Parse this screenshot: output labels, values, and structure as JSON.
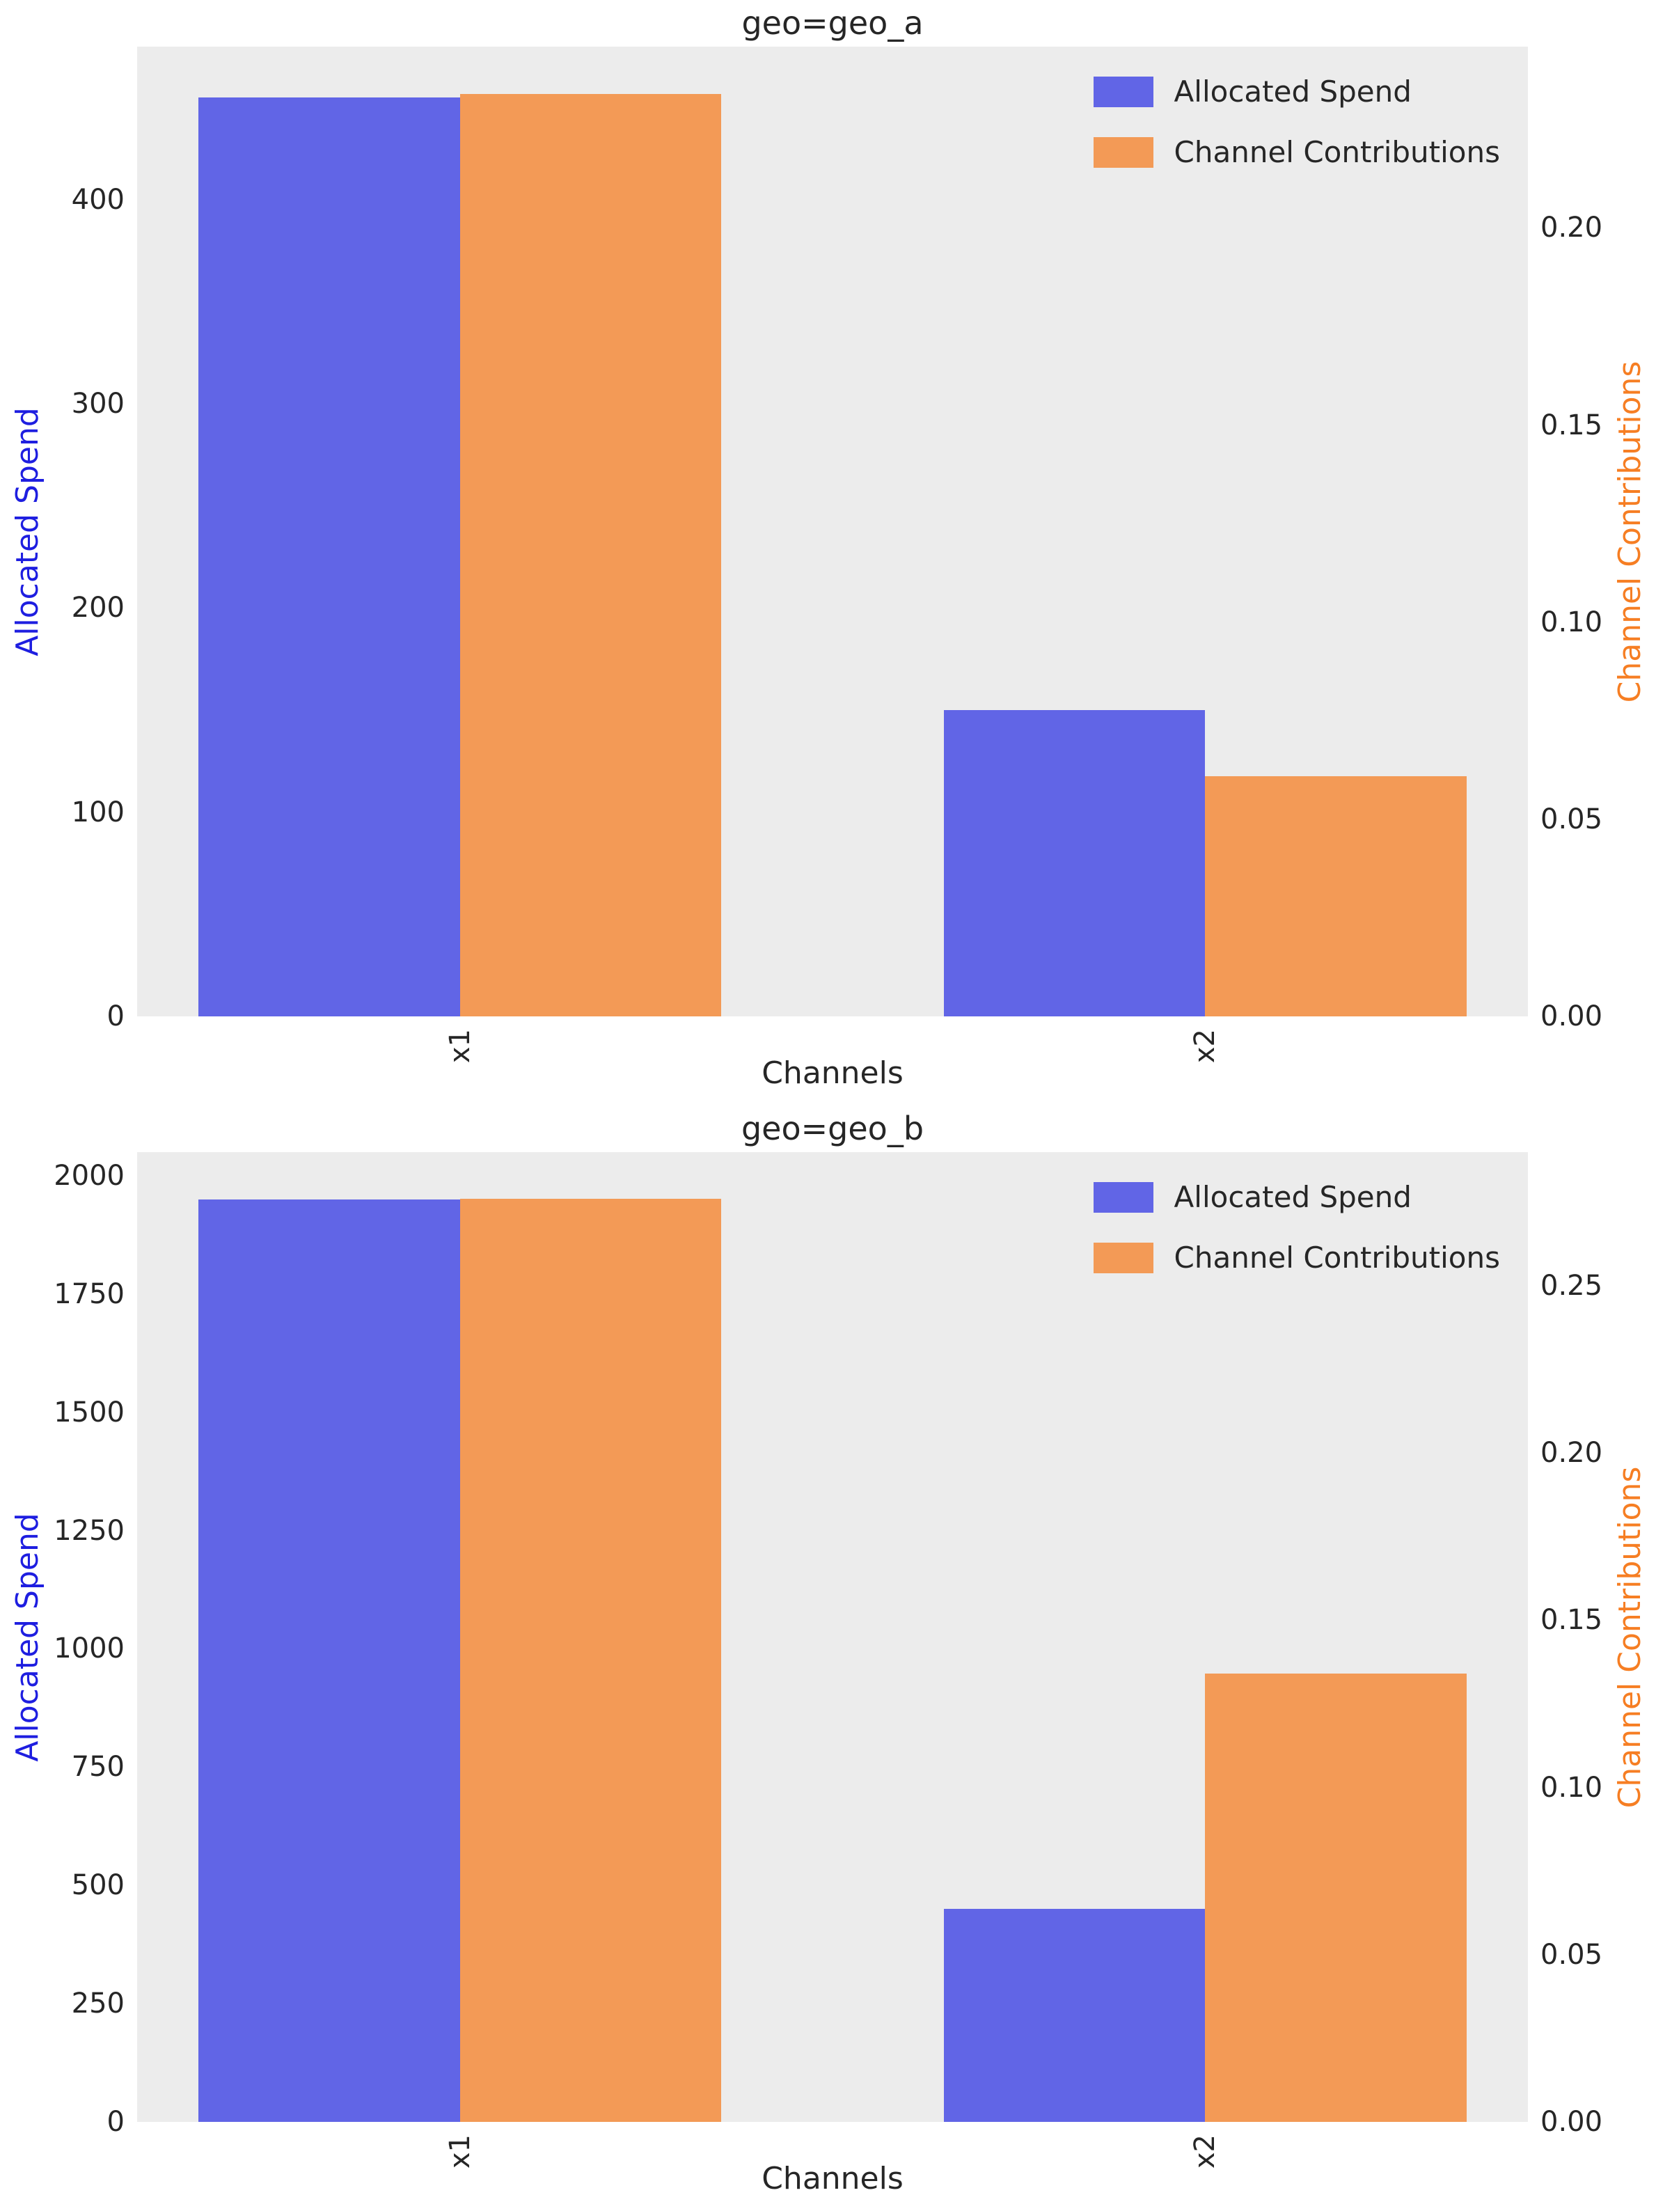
{
  "style": {
    "background": "#FFFFFF",
    "plot_background": "#ECECEC",
    "text_color": "#262626",
    "spend_color": "#6165E6",
    "contribution_color": "#F39A56",
    "left_axis_label_color": "#1E1EE0",
    "right_axis_label_color": "#F67E23"
  },
  "legend": {
    "items": [
      {
        "label": "Allocated Spend"
      },
      {
        "label": "Channel Contributions"
      }
    ]
  },
  "chart_data": [
    {
      "type": "bar",
      "title": "geo=geo_a",
      "xlabel": "Channels",
      "ylabel_left": "Allocated Spend",
      "ylabel_right": "Channel Contributions",
      "categories": [
        "x1",
        "x2"
      ],
      "series": [
        {
          "name": "Allocated Spend",
          "axis": "left",
          "values": [
            450,
            150
          ]
        },
        {
          "name": "Channel Contributions",
          "axis": "right",
          "values": [
            0.234,
            0.061
          ]
        }
      ],
      "ylim_left": [
        0,
        475
      ],
      "ylim_right": [
        0,
        0.246
      ],
      "yticks_left": [
        0,
        100,
        200,
        300,
        400
      ],
      "yticks_right": [
        0.0,
        0.05,
        0.1,
        0.15,
        0.2
      ],
      "legend_position": "upper right",
      "grid": false
    },
    {
      "type": "bar",
      "title": "geo=geo_b",
      "xlabel": "Channels",
      "ylabel_left": "Allocated Spend",
      "ylabel_right": "Channel Contributions",
      "categories": [
        "x1",
        "x2"
      ],
      "series": [
        {
          "name": "Allocated Spend",
          "axis": "left",
          "values": [
            1950,
            450
          ]
        },
        {
          "name": "Channel Contributions",
          "axis": "right",
          "values": [
            0.276,
            0.134
          ]
        }
      ],
      "ylim_left": [
        0,
        2050
      ],
      "ylim_right": [
        0,
        0.29
      ],
      "yticks_left": [
        0,
        250,
        500,
        750,
        1000,
        1250,
        1500,
        1750,
        2000
      ],
      "yticks_right": [
        0.0,
        0.05,
        0.1,
        0.15,
        0.2,
        0.25
      ],
      "legend_position": "upper right",
      "grid": false
    }
  ]
}
